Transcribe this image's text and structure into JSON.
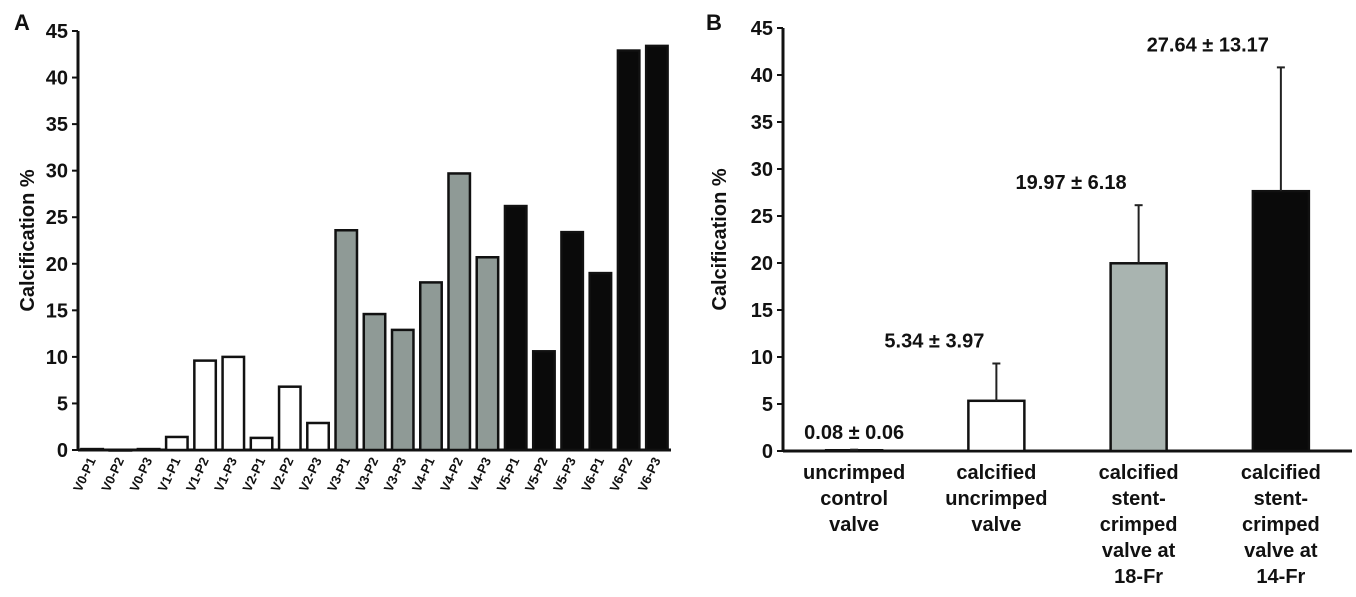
{
  "panels": [
    {
      "letter": "A"
    },
    {
      "letter": "B"
    }
  ],
  "chart_data": [
    {
      "type": "bar",
      "panel": "A",
      "title": "",
      "xlabel": "",
      "ylabel": "Calcification %",
      "ylim": [
        0,
        45
      ],
      "yticks": [
        0,
        5,
        10,
        15,
        20,
        25,
        30,
        35,
        40,
        45
      ],
      "grid": false,
      "categories": [
        "V0-P1",
        "V0-P2",
        "V0-P3",
        "V1-P1",
        "V1-P2",
        "V1-P3",
        "V2-P1",
        "V2-P2",
        "V2-P3",
        "V3-P1",
        "V3-P2",
        "V3-P3",
        "V4-P1",
        "V4-P2",
        "V4-P3",
        "V5-P1",
        "V5-P2",
        "V5-P3",
        "V6-P1",
        "V6-P2",
        "V6-P3"
      ],
      "values": [
        0.1,
        0.0,
        0.1,
        1.4,
        9.6,
        10.0,
        1.3,
        6.8,
        2.9,
        23.6,
        14.6,
        12.9,
        18.0,
        29.7,
        20.7,
        26.2,
        10.6,
        23.4,
        19.0,
        42.9,
        43.4
      ],
      "colors": [
        "#ffffff",
        "#ffffff",
        "#ffffff",
        "#ffffff",
        "#ffffff",
        "#ffffff",
        "#ffffff",
        "#ffffff",
        "#ffffff",
        "#8f9a96",
        "#8f9a96",
        "#8f9a96",
        "#8f9a96",
        "#8f9a96",
        "#8f9a96",
        "#0a0a0a",
        "#0a0a0a",
        "#0a0a0a",
        "#0a0a0a",
        "#0a0a0a",
        "#0a0a0a"
      ]
    },
    {
      "type": "bar",
      "panel": "B",
      "title": "",
      "xlabel": "",
      "ylabel": "Calcification %",
      "ylim": [
        0,
        45
      ],
      "yticks": [
        0,
        5,
        10,
        15,
        20,
        25,
        30,
        35,
        40,
        45
      ],
      "grid": false,
      "categories": [
        [
          "uncrimped",
          "control",
          "valve"
        ],
        [
          "calcified",
          "uncrimped",
          "valve"
        ],
        [
          "calcified",
          "stent-",
          "crimped",
          "valve at",
          "18-Fr"
        ],
        [
          "calcified",
          "stent-",
          "crimped",
          "valve at",
          "14-Fr"
        ]
      ],
      "values": [
        0.08,
        5.34,
        19.97,
        27.64
      ],
      "errors": [
        0.06,
        3.97,
        6.18,
        13.17
      ],
      "data_labels": [
        "0.08 ± 0.06",
        "5.34 ± 3.97",
        "19.97 ± 6.18",
        "27.64 ± 13.17"
      ],
      "colors": [
        "#ffffff",
        "#ffffff",
        "#a9b4b0",
        "#0a0a0a"
      ]
    }
  ]
}
